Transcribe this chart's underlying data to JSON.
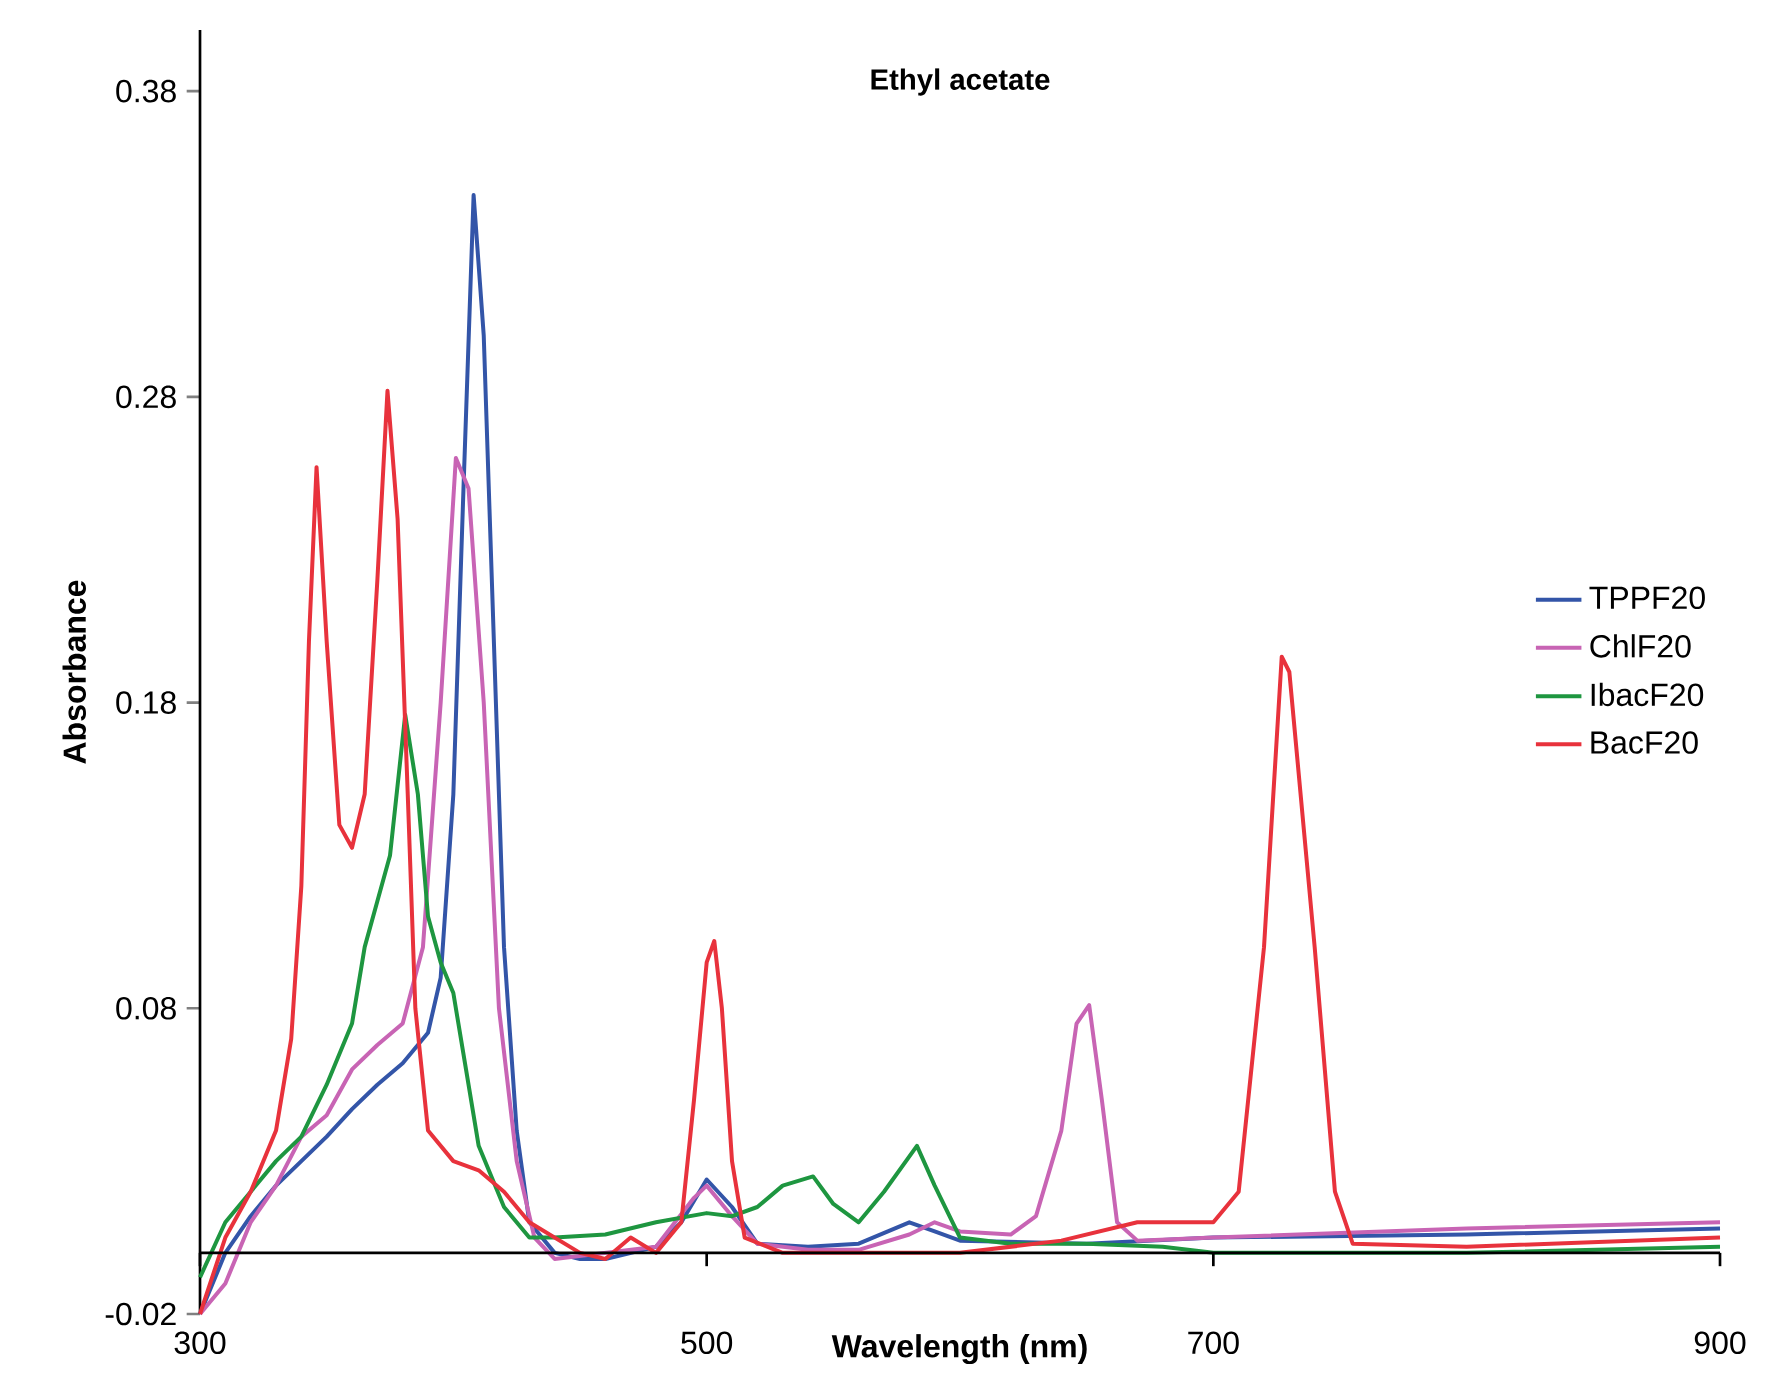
{
  "chart_data": {
    "type": "line",
    "title": "Ethyl acetate",
    "xlabel": "Wavelength (nm)",
    "ylabel": "Absorbance",
    "xlim": [
      300,
      900
    ],
    "xticks": [
      300,
      500,
      700,
      900
    ],
    "ylim": [
      -0.02,
      0.4
    ],
    "yticks": [
      -0.02,
      0.08,
      0.18,
      0.28,
      0.38
    ],
    "grid": false,
    "legend": "right",
    "marker": "none",
    "line_style": "solid",
    "series": [
      {
        "name": "TPPF20",
        "color": "#3355a8",
        "x": [
          300,
          310,
          320,
          330,
          340,
          350,
          360,
          370,
          380,
          390,
          395,
          400,
          404,
          408,
          412,
          416,
          420,
          425,
          430,
          440,
          450,
          460,
          470,
          480,
          490,
          500,
          510,
          520,
          540,
          560,
          580,
          590,
          600,
          650,
          700,
          800,
          900
        ],
        "values": [
          -0.02,
          0.0,
          0.012,
          0.022,
          0.03,
          0.038,
          0.047,
          0.055,
          0.062,
          0.072,
          0.09,
          0.15,
          0.25,
          0.346,
          0.3,
          0.2,
          0.1,
          0.04,
          0.01,
          0.0,
          -0.002,
          -0.002,
          0.0,
          0.002,
          0.01,
          0.024,
          0.015,
          0.003,
          0.002,
          0.003,
          0.01,
          0.007,
          0.004,
          0.003,
          0.005,
          0.006,
          0.008
        ]
      },
      {
        "name": "ChlF20",
        "color": "#c864b4",
        "x": [
          300,
          310,
          320,
          330,
          340,
          350,
          360,
          370,
          380,
          388,
          395,
          401,
          406,
          412,
          418,
          425,
          432,
          440,
          460,
          480,
          495,
          500,
          510,
          520,
          540,
          560,
          580,
          590,
          600,
          620,
          630,
          640,
          646,
          651,
          656,
          662,
          670,
          700,
          800,
          900
        ],
        "values": [
          -0.02,
          -0.01,
          0.01,
          0.022,
          0.038,
          0.045,
          0.06,
          0.068,
          0.075,
          0.1,
          0.18,
          0.26,
          0.25,
          0.18,
          0.08,
          0.03,
          0.005,
          -0.002,
          0.0,
          0.002,
          0.018,
          0.022,
          0.012,
          0.003,
          0.001,
          0.001,
          0.006,
          0.01,
          0.007,
          0.006,
          0.012,
          0.04,
          0.075,
          0.081,
          0.05,
          0.01,
          0.004,
          0.005,
          0.008,
          0.01
        ]
      },
      {
        "name": "IbacF20",
        "color": "#1e9640",
        "x": [
          300,
          310,
          320,
          330,
          340,
          350,
          360,
          365,
          370,
          375,
          381,
          386,
          390,
          395,
          400,
          405,
          410,
          420,
          430,
          440,
          460,
          480,
          500,
          510,
          520,
          530,
          542,
          550,
          560,
          570,
          583,
          590,
          600,
          620,
          650,
          680,
          700,
          800,
          900
        ],
        "values": [
          -0.008,
          0.01,
          0.02,
          0.03,
          0.038,
          0.055,
          0.075,
          0.1,
          0.115,
          0.13,
          0.176,
          0.15,
          0.11,
          0.095,
          0.085,
          0.06,
          0.035,
          0.015,
          0.005,
          0.005,
          0.006,
          0.01,
          0.013,
          0.012,
          0.015,
          0.022,
          0.025,
          0.016,
          0.01,
          0.02,
          0.035,
          0.022,
          0.005,
          0.003,
          0.003,
          0.002,
          0.0,
          0.0,
          0.002
        ]
      },
      {
        "name": "BacF20",
        "color": "#e8323c",
        "x": [
          300,
          310,
          320,
          330,
          336,
          340,
          343,
          346,
          350,
          355,
          360,
          365,
          370,
          374,
          378,
          382,
          385,
          390,
          400,
          410,
          420,
          430,
          440,
          450,
          460,
          470,
          480,
          490,
          495,
          500,
          503,
          506,
          510,
          515,
          530,
          600,
          640,
          670,
          700,
          710,
          720,
          727,
          730,
          740,
          748,
          755,
          800,
          900
        ],
        "values": [
          -0.02,
          0.005,
          0.02,
          0.04,
          0.07,
          0.12,
          0.2,
          0.257,
          0.2,
          0.14,
          0.1325,
          0.15,
          0.22,
          0.282,
          0.24,
          0.15,
          0.08,
          0.04,
          0.03,
          0.027,
          0.02,
          0.01,
          0.005,
          0.0,
          -0.002,
          0.005,
          0.0,
          0.01,
          0.05,
          0.095,
          0.102,
          0.08,
          0.03,
          0.005,
          0.0,
          0.0,
          0.004,
          0.01,
          0.01,
          0.02,
          0.1,
          0.195,
          0.19,
          0.1,
          0.02,
          0.003,
          0.002,
          0.005
        ]
      }
    ]
  }
}
